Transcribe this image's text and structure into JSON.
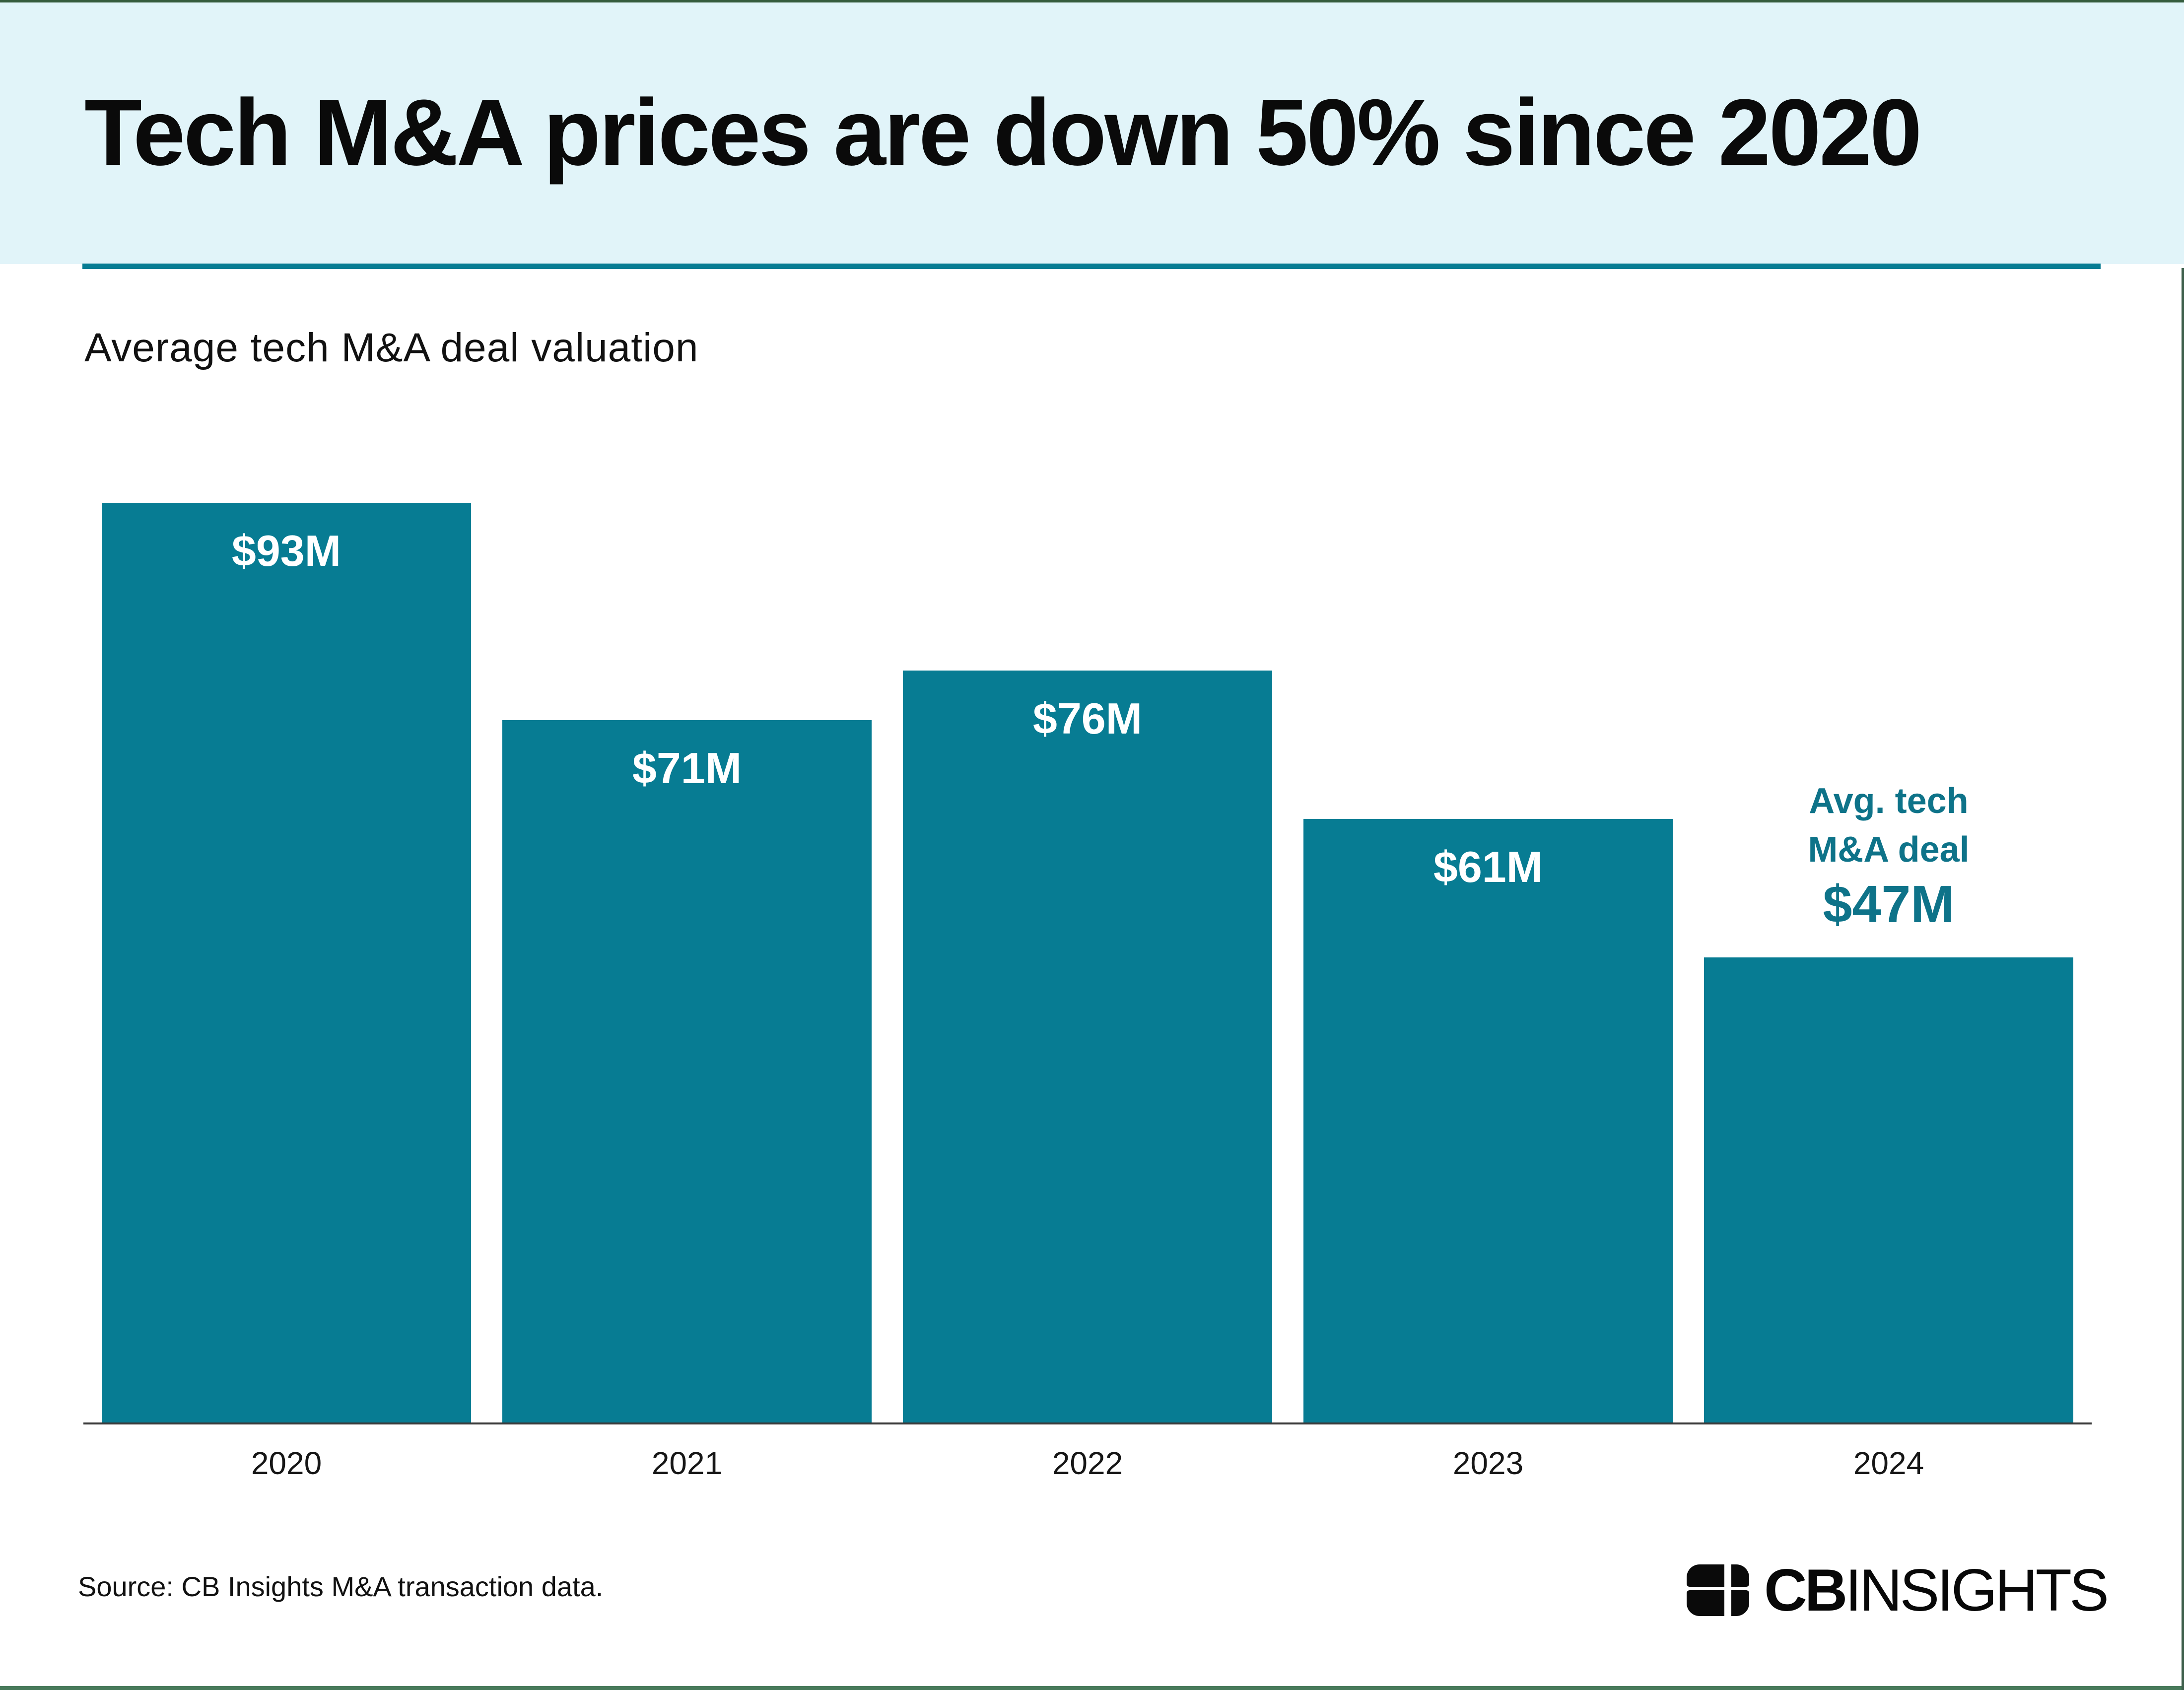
{
  "header": {
    "title": "Tech M&A prices are down 50% since 2020"
  },
  "subtitle": "Average tech M&A deal valuation",
  "chart_data": {
    "type": "bar",
    "title": "Average tech M&A deal valuation",
    "categories": [
      "2020",
      "2021",
      "2022",
      "2023",
      "2024"
    ],
    "values": [
      93,
      71,
      76,
      61,
      47
    ],
    "bar_labels": [
      "$93M",
      "$71M",
      "$76M",
      "$61M",
      "$47M"
    ],
    "label_placement": [
      "inside",
      "inside",
      "inside",
      "inside",
      "callout"
    ],
    "callout": {
      "lines": [
        "Avg. tech",
        "M&A deal"
      ],
      "value": "$47M"
    },
    "xlabel": "",
    "ylabel": "",
    "ylim": [
      0,
      93
    ],
    "grid": false,
    "legend": false,
    "bar_color": "#077c93",
    "value_label_color": "#ffffff",
    "callout_color": "#0e7389",
    "axis_color": "#3a3a3a"
  },
  "footer": {
    "source": "Source: CB Insights M&A transaction data.",
    "logo_mark": "cbinsights-quadrant-mark",
    "logo_text_bold": "CB",
    "logo_text_regular": "INSIGHTS"
  },
  "colors": {
    "header_band": "#e1f4f9",
    "divider_teal": "#077c93",
    "page_background": "#ffffff",
    "title_text": "#0a0a0a"
  }
}
